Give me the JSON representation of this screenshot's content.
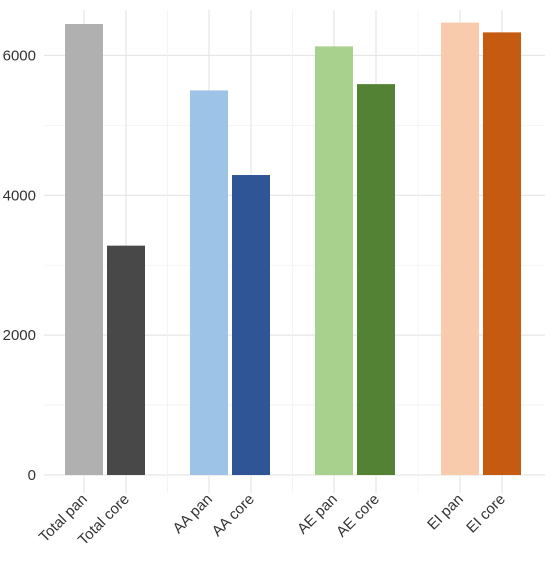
{
  "chart_data": {
    "type": "bar",
    "title": "",
    "xlabel": "",
    "ylabel": "",
    "ylim": [
      0,
      6650
    ],
    "yticks": [
      0,
      2000,
      4000,
      6000
    ],
    "grid": true,
    "legend": "none",
    "groups": [
      {
        "bars": [
          {
            "label": "Total pan",
            "value": 6450,
            "color": "#b0b0b0"
          },
          {
            "label": "Total core",
            "value": 3280,
            "color": "#484848"
          }
        ]
      },
      {
        "bars": [
          {
            "label": "AA pan",
            "value": 5500,
            "color": "#9dc3e6"
          },
          {
            "label": "AA core",
            "value": 4290,
            "color": "#2f5597"
          }
        ]
      },
      {
        "bars": [
          {
            "label": "AE pan",
            "value": 6130,
            "color": "#a9d18e"
          },
          {
            "label": "AE core",
            "value": 5590,
            "color": "#548235"
          }
        ]
      },
      {
        "bars": [
          {
            "label": "EI pan",
            "value": 6470,
            "color": "#f8cbad"
          },
          {
            "label": "EI core",
            "value": 6330,
            "color": "#c55a11"
          }
        ]
      }
    ]
  }
}
